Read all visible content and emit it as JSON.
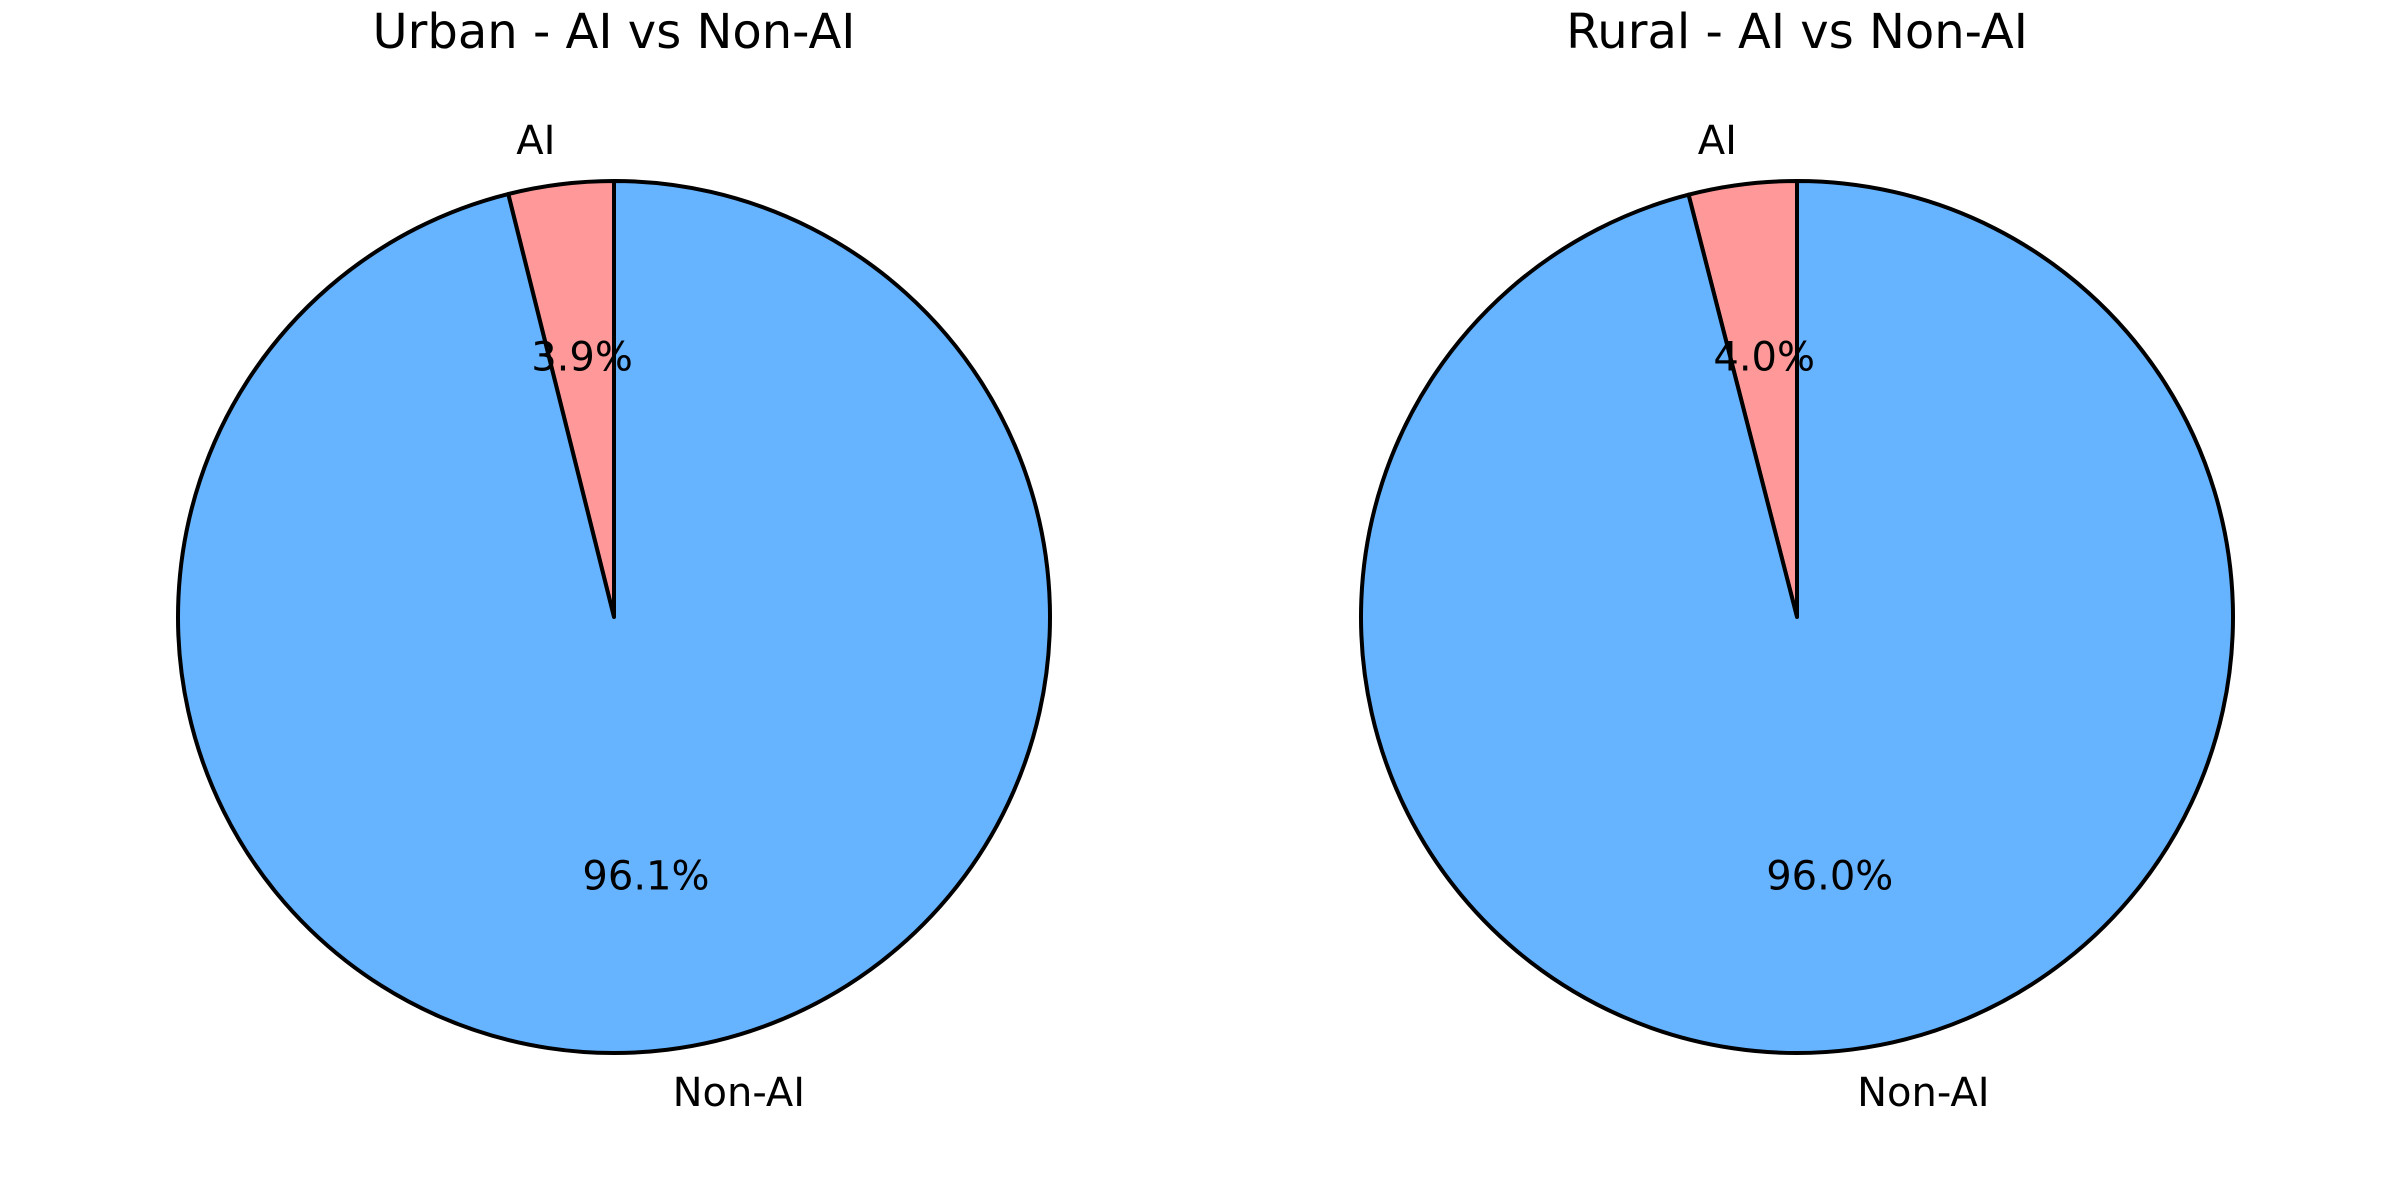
{
  "chart_data": [
    {
      "type": "pie",
      "title": "Urban - AI vs Non-AI",
      "labels": [
        "AI",
        "Non-AI"
      ],
      "values": [
        3.9,
        96.1
      ],
      "pct_labels": [
        "3.9%",
        "96.1%"
      ],
      "colors": [
        "#ff9999",
        "#66b3ff"
      ],
      "edge_color": "#000000",
      "start_angle_deg": 90,
      "direction": "counterclockwise"
    },
    {
      "type": "pie",
      "title": "Rural - AI vs Non-AI",
      "labels": [
        "AI",
        "Non-AI"
      ],
      "values": [
        4.0,
        96.0
      ],
      "pct_labels": [
        "4.0%",
        "96.0%"
      ],
      "colors": [
        "#ff9999",
        "#66b3ff"
      ],
      "edge_color": "#000000",
      "start_angle_deg": 90,
      "direction": "counterclockwise"
    }
  ]
}
